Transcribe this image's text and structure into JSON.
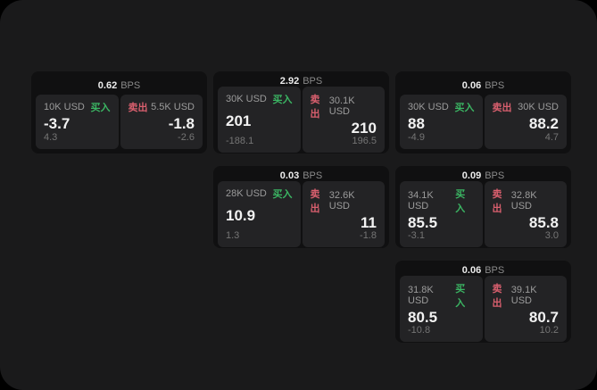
{
  "labels": {
    "bps_suffix": "BPS",
    "buy": "买入",
    "sell": "卖出"
  },
  "colors": {
    "buy": "#3bb563",
    "sell": "#d95f6e",
    "price_text": "#f2f2f2",
    "window_bg": "#1a1a1b",
    "card_bg": "#101011",
    "panel_bg": "#232325"
  },
  "cards": [
    {
      "row": 1,
      "col": 1,
      "spread": "0.62",
      "buy": {
        "size": "10K USD",
        "price": "-3.7",
        "delta": "4.3"
      },
      "sell": {
        "size": "5.5K USD",
        "price": "-1.8",
        "delta": "-2.6"
      }
    },
    {
      "row": 1,
      "col": 2,
      "spread": "2.92",
      "buy": {
        "size": "30K USD",
        "price": "201",
        "delta": "-188.1"
      },
      "sell": {
        "size": "30.1K USD",
        "price": "210",
        "delta": "196.5"
      }
    },
    {
      "row": 1,
      "col": 3,
      "spread": "0.06",
      "buy": {
        "size": "30K USD",
        "price": "88",
        "delta": "-4.9"
      },
      "sell": {
        "size": "30K USD",
        "price": "88.2",
        "delta": "4.7"
      }
    },
    {
      "row": 2,
      "col": 2,
      "spread": "0.03",
      "buy": {
        "size": "28K USD",
        "price": "10.9",
        "delta": "1.3"
      },
      "sell": {
        "size": "32.6K USD",
        "price": "11",
        "delta": "-1.8"
      }
    },
    {
      "row": 2,
      "col": 3,
      "spread": "0.09",
      "buy": {
        "size": "34.1K USD",
        "price": "85.5",
        "delta": "-3.1"
      },
      "sell": {
        "size": "32.8K USD",
        "price": "85.8",
        "delta": "3.0"
      }
    },
    {
      "row": 3,
      "col": 3,
      "spread": "0.06",
      "buy": {
        "size": "31.8K USD",
        "price": "80.5",
        "delta": "-10.8"
      },
      "sell": {
        "size": "39.1K USD",
        "price": "80.7",
        "delta": "10.2"
      }
    }
  ]
}
